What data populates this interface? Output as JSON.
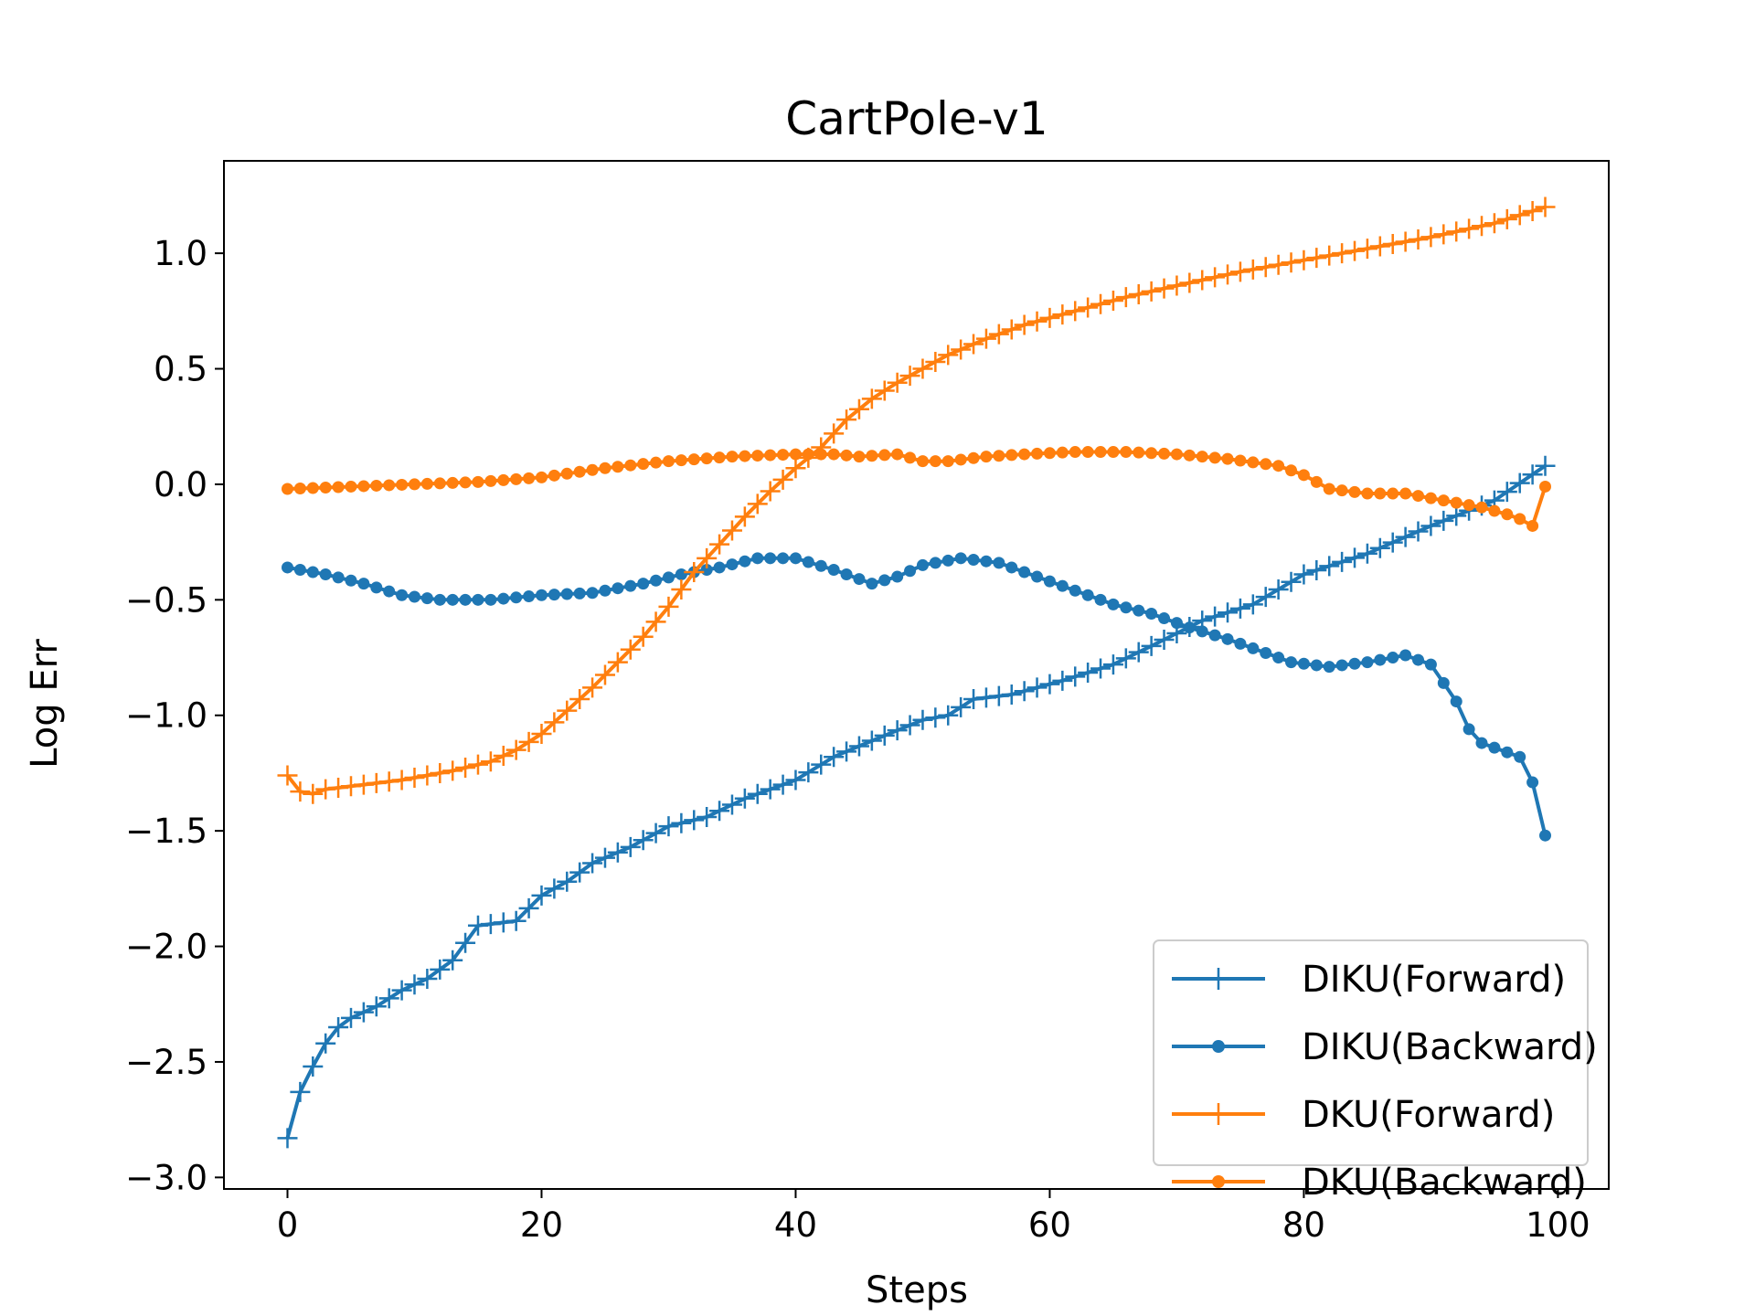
{
  "chart_data": {
    "type": "line",
    "title": "CartPole-v1",
    "xlabel": "Steps",
    "ylabel": "Log Err",
    "xlim": [
      -5,
      104
    ],
    "ylim": [
      -3.05,
      1.4
    ],
    "xticks": [
      0,
      20,
      40,
      60,
      80,
      100
    ],
    "yticks": [
      1.0,
      0.5,
      0.0,
      -0.5,
      -1.0,
      -1.5,
      -2.0,
      -2.5,
      -3.0
    ],
    "xtick_labels": [
      "0",
      "20",
      "40",
      "60",
      "80",
      "100"
    ],
    "ytick_labels": [
      "1.0",
      "0.5",
      "0.0",
      "−0.5",
      "−1.0",
      "−1.5",
      "−2.0",
      "−2.5",
      "−3.0"
    ],
    "grid": false,
    "legend_position": "lower-right",
    "series": [
      {
        "name": "DIKU(Forward)",
        "color": "#1f77b4",
        "marker": "plus",
        "anchors": [
          [
            0,
            -2.83
          ],
          [
            1,
            -2.63
          ],
          [
            2,
            -2.52
          ],
          [
            3,
            -2.42
          ],
          [
            4,
            -2.35
          ],
          [
            5,
            -2.31
          ],
          [
            7,
            -2.26
          ],
          [
            9,
            -2.19
          ],
          [
            11,
            -2.14
          ],
          [
            13,
            -2.06
          ],
          [
            15,
            -1.91
          ],
          [
            18,
            -1.89
          ],
          [
            20,
            -1.78
          ],
          [
            22,
            -1.72
          ],
          [
            24,
            -1.64
          ],
          [
            27,
            -1.57
          ],
          [
            30,
            -1.48
          ],
          [
            33,
            -1.44
          ],
          [
            36,
            -1.36
          ],
          [
            40,
            -1.28
          ],
          [
            43,
            -1.18
          ],
          [
            46,
            -1.11
          ],
          [
            50,
            -1.02
          ],
          [
            52,
            -1.0
          ],
          [
            54,
            -0.93
          ],
          [
            57,
            -0.91
          ],
          [
            61,
            -0.85
          ],
          [
            65,
            -0.78
          ],
          [
            68,
            -0.7
          ],
          [
            72,
            -0.59
          ],
          [
            76,
            -0.52
          ],
          [
            80,
            -0.39
          ],
          [
            85,
            -0.3
          ],
          [
            90,
            -0.18
          ],
          [
            95,
            -0.07
          ],
          [
            99,
            0.08
          ]
        ]
      },
      {
        "name": "DIKU(Backward)",
        "color": "#1f77b4",
        "marker": "dot",
        "anchors": [
          [
            0,
            -0.36
          ],
          [
            3,
            -0.39
          ],
          [
            6,
            -0.43
          ],
          [
            9,
            -0.48
          ],
          [
            12,
            -0.5
          ],
          [
            16,
            -0.5
          ],
          [
            20,
            -0.48
          ],
          [
            24,
            -0.47
          ],
          [
            28,
            -0.43
          ],
          [
            31,
            -0.39
          ],
          [
            34,
            -0.36
          ],
          [
            37,
            -0.32
          ],
          [
            40,
            -0.32
          ],
          [
            43,
            -0.37
          ],
          [
            46,
            -0.43
          ],
          [
            48,
            -0.4
          ],
          [
            50,
            -0.35
          ],
          [
            53,
            -0.32
          ],
          [
            56,
            -0.34
          ],
          [
            59,
            -0.4
          ],
          [
            62,
            -0.46
          ],
          [
            65,
            -0.52
          ],
          [
            68,
            -0.56
          ],
          [
            71,
            -0.62
          ],
          [
            74,
            -0.67
          ],
          [
            77,
            -0.73
          ],
          [
            79,
            -0.77
          ],
          [
            82,
            -0.79
          ],
          [
            85,
            -0.77
          ],
          [
            88,
            -0.74
          ],
          [
            90,
            -0.78
          ],
          [
            92,
            -0.94
          ],
          [
            93,
            -1.06
          ],
          [
            94,
            -1.12
          ],
          [
            96,
            -1.16
          ],
          [
            97,
            -1.18
          ],
          [
            98,
            -1.29
          ],
          [
            99,
            -1.52
          ]
        ]
      },
      {
        "name": "DKU(Forward)",
        "color": "#ff7f0e",
        "marker": "plus",
        "anchors": [
          [
            0,
            -1.26
          ],
          [
            1,
            -1.33
          ],
          [
            2,
            -1.34
          ],
          [
            3,
            -1.32
          ],
          [
            6,
            -1.3
          ],
          [
            9,
            -1.28
          ],
          [
            13,
            -1.24
          ],
          [
            16,
            -1.2
          ],
          [
            18,
            -1.15
          ],
          [
            20,
            -1.08
          ],
          [
            22,
            -0.98
          ],
          [
            24,
            -0.88
          ],
          [
            26,
            -0.77
          ],
          [
            28,
            -0.66
          ],
          [
            30,
            -0.53
          ],
          [
            32,
            -0.38
          ],
          [
            34,
            -0.26
          ],
          [
            36,
            -0.14
          ],
          [
            38,
            -0.03
          ],
          [
            40,
            0.07
          ],
          [
            42,
            0.16
          ],
          [
            44,
            0.28
          ],
          [
            46,
            0.37
          ],
          [
            48,
            0.44
          ],
          [
            50,
            0.5
          ],
          [
            52,
            0.56
          ],
          [
            55,
            0.63
          ],
          [
            58,
            0.69
          ],
          [
            62,
            0.75
          ],
          [
            66,
            0.81
          ],
          [
            70,
            0.86
          ],
          [
            75,
            0.92
          ],
          [
            80,
            0.97
          ],
          [
            85,
            1.02
          ],
          [
            90,
            1.07
          ],
          [
            95,
            1.13
          ],
          [
            99,
            1.2
          ]
        ]
      },
      {
        "name": "DKU(Backward)",
        "color": "#ff7f0e",
        "marker": "dot",
        "anchors": [
          [
            0,
            -0.02
          ],
          [
            5,
            -0.01
          ],
          [
            10,
            0.0
          ],
          [
            15,
            0.01
          ],
          [
            20,
            0.03
          ],
          [
            25,
            0.07
          ],
          [
            30,
            0.1
          ],
          [
            35,
            0.12
          ],
          [
            40,
            0.13
          ],
          [
            43,
            0.13
          ],
          [
            45,
            0.12
          ],
          [
            48,
            0.13
          ],
          [
            50,
            0.1
          ],
          [
            52,
            0.1
          ],
          [
            55,
            0.12
          ],
          [
            58,
            0.13
          ],
          [
            62,
            0.14
          ],
          [
            66,
            0.14
          ],
          [
            70,
            0.13
          ],
          [
            74,
            0.11
          ],
          [
            78,
            0.08
          ],
          [
            80,
            0.04
          ],
          [
            82,
            -0.02
          ],
          [
            85,
            -0.04
          ],
          [
            88,
            -0.04
          ],
          [
            91,
            -0.07
          ],
          [
            94,
            -0.1
          ],
          [
            96,
            -0.13
          ],
          [
            97,
            -0.15
          ],
          [
            98,
            -0.18
          ],
          [
            99,
            -0.01
          ]
        ]
      }
    ]
  }
}
